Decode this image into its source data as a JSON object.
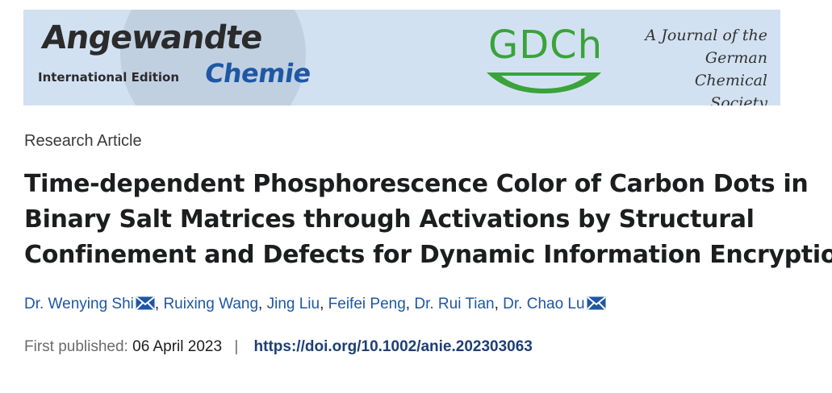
{
  "banner": {
    "brand": "Angewandte",
    "edition": "International Edition",
    "brand_sub": "Chemie",
    "society_logo": "GDCh",
    "society_line1": "A Journal of the",
    "society_line2": "German",
    "society_line3": "Chemical Society",
    "colors": {
      "background": "#d2e1f1",
      "chemie_blue": "#1e57a5",
      "gdch_green": "#3aa33a"
    }
  },
  "article": {
    "type": "Research Article",
    "title_lines": [
      "Time-dependent Phosphorescence Color of Carbon Dots in",
      "Binary Salt Matrices through Activations by Structural",
      "Confinement and Defects for Dynamic Information Encryption"
    ],
    "authors": [
      {
        "name": "Dr. Wenying Shi",
        "email_icon": "envelope-icon"
      },
      {
        "name": "Ruixing Wang"
      },
      {
        "name": "Jing Liu"
      },
      {
        "name": "Feifei Peng"
      },
      {
        "name": "Dr. Rui Tian"
      },
      {
        "name": "Dr. Chao Lu",
        "email_icon": "envelope-icon"
      }
    ],
    "first_published_label": "First published:",
    "first_published_date": "06 April 2023",
    "separator": "|",
    "doi": "https://doi.org/10.1002/anie.202303063"
  }
}
